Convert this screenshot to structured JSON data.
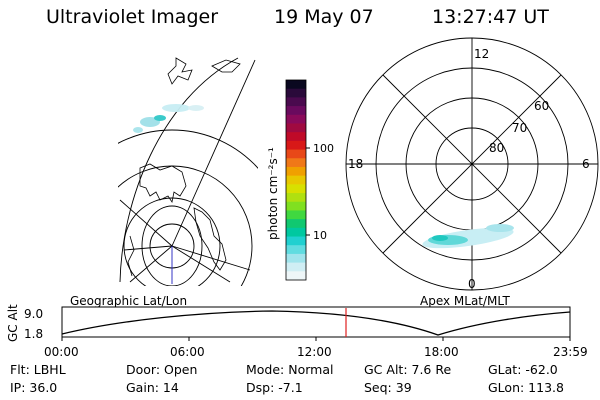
{
  "header": {
    "instrument": "Ultraviolet Imager",
    "date": "19 May 07",
    "time": "13:27:47 UT"
  },
  "colorbar": {
    "label": "photon cm⁻²s⁻¹",
    "ticks": [
      "100",
      "10"
    ],
    "colors": [
      "#0a0820",
      "#2a0a3a",
      "#4a0a4e",
      "#6a0a5e",
      "#8a0a5a",
      "#a00a40",
      "#c00a28",
      "#d81818",
      "#e84818",
      "#f07818",
      "#f0a000",
      "#e8c800",
      "#d8e000",
      "#b0e010",
      "#80e020",
      "#40d840",
      "#10c870",
      "#00c8a0",
      "#20d0d0",
      "#60dce0",
      "#a0e4ec",
      "#d0eef4",
      "#eef6f8"
    ]
  },
  "left_map": {
    "label": "Geographic Lat/Lon"
  },
  "right_map": {
    "label": "Apex  MLat/MLT",
    "mlt_labels": [
      "12",
      "18",
      "6",
      "0"
    ],
    "lat_labels": [
      "60",
      "70",
      "80"
    ]
  },
  "altitude_plot": {
    "ylabel": "GC Alt",
    "y_ticks": [
      "9.0",
      "1.8"
    ],
    "x_ticks": [
      "00:00",
      "06:00",
      "12:00",
      "18:00",
      "23:59"
    ],
    "cursor_color": "#e02020"
  },
  "info": {
    "filter": "Flt: LBHL",
    "door": "Door: Open",
    "mode": "Mode: Normal",
    "gc_alt": "GC Alt: 7.6 Re",
    "glat": "GLat: -62.0",
    "ip": "IP: 36.0",
    "gain": "Gain: 14",
    "dsp": "Dsp:   -7.1",
    "seq": "Seq: 39",
    "glon": "GLon: 113.8"
  }
}
